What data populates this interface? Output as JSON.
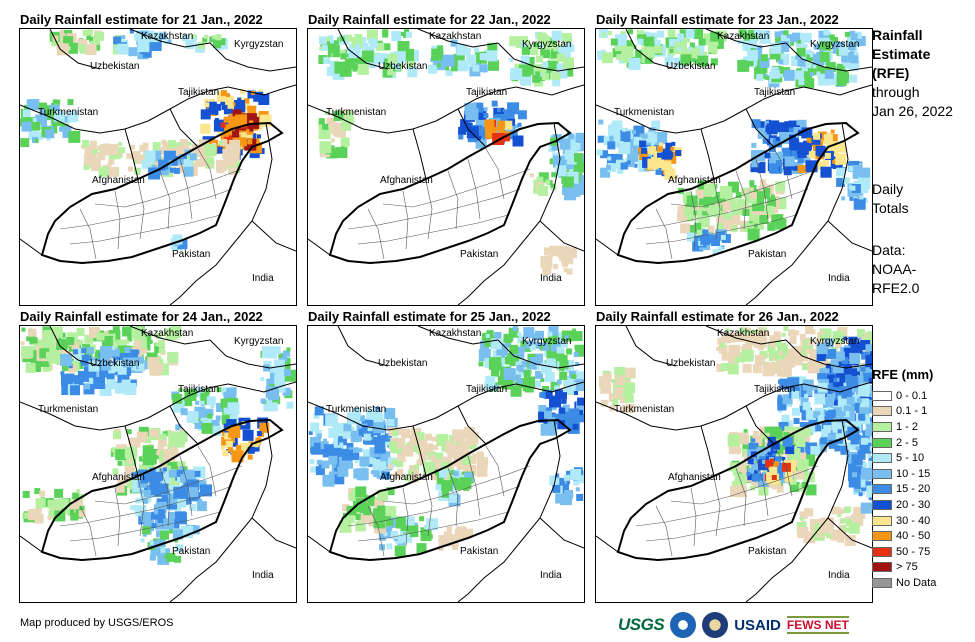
{
  "panels": [
    {
      "title": "Daily Rainfall estimate for 21 Jan., 2022"
    },
    {
      "title": "Daily Rainfall estimate for 22 Jan., 2022"
    },
    {
      "title": "Daily Rainfall estimate for 23 Jan., 2022"
    },
    {
      "title": "Daily Rainfall estimate for 24 Jan., 2022"
    },
    {
      "title": "Daily Rainfall estimate for 25 Jan., 2022"
    },
    {
      "title": "Daily Rainfall estimate for 26 Jan., 2022"
    }
  ],
  "country_labels": {
    "kazakhstan": "Kazakhstan",
    "kyrgyzstan": "Kyrgyzstan",
    "uzbekistan": "Uzbekistan",
    "tajikistan": "Tajikistan",
    "turkmenistan": "Turkmenistan",
    "afghanistan": "Afghanistan",
    "pakistan": "Pakistan",
    "india": "India"
  },
  "sidebar": {
    "title_lines": [
      "Rainfall",
      "Estimate",
      "(RFE)"
    ],
    "through": "through",
    "date": "Jan 26, 2022",
    "period_lines": [
      "Daily",
      "Totals"
    ],
    "source_lines": [
      "Data:",
      "NOAA-",
      "RFE2.0"
    ]
  },
  "legend": {
    "title": "RFE (mm)",
    "items": [
      {
        "label": "0 - 0.1",
        "color": "#ffffff"
      },
      {
        "label": "0.1 - 1",
        "color": "#ead6b8"
      },
      {
        "label": "1 - 2",
        "color": "#b4f0a0"
      },
      {
        "label": "2 - 5",
        "color": "#5ad25a"
      },
      {
        "label": "5 - 10",
        "color": "#b0eaf8"
      },
      {
        "label": "10 - 15",
        "color": "#78bff0"
      },
      {
        "label": "15 - 20",
        "color": "#3c8ce6"
      },
      {
        "label": "20 - 30",
        "color": "#1450d2"
      },
      {
        "label": "30 - 40",
        "color": "#fae68c"
      },
      {
        "label": "40 - 50",
        "color": "#f59614"
      },
      {
        "label": "50 - 75",
        "color": "#e63214"
      },
      {
        "label": "> 75",
        "color": "#a01414"
      },
      {
        "label": "No Data",
        "color": "#969696"
      }
    ]
  },
  "credit": "Map produced by USGS/EROS",
  "logos": {
    "usgs": "USGS",
    "usaid": "USAID",
    "fews": "FEWS NET"
  }
}
